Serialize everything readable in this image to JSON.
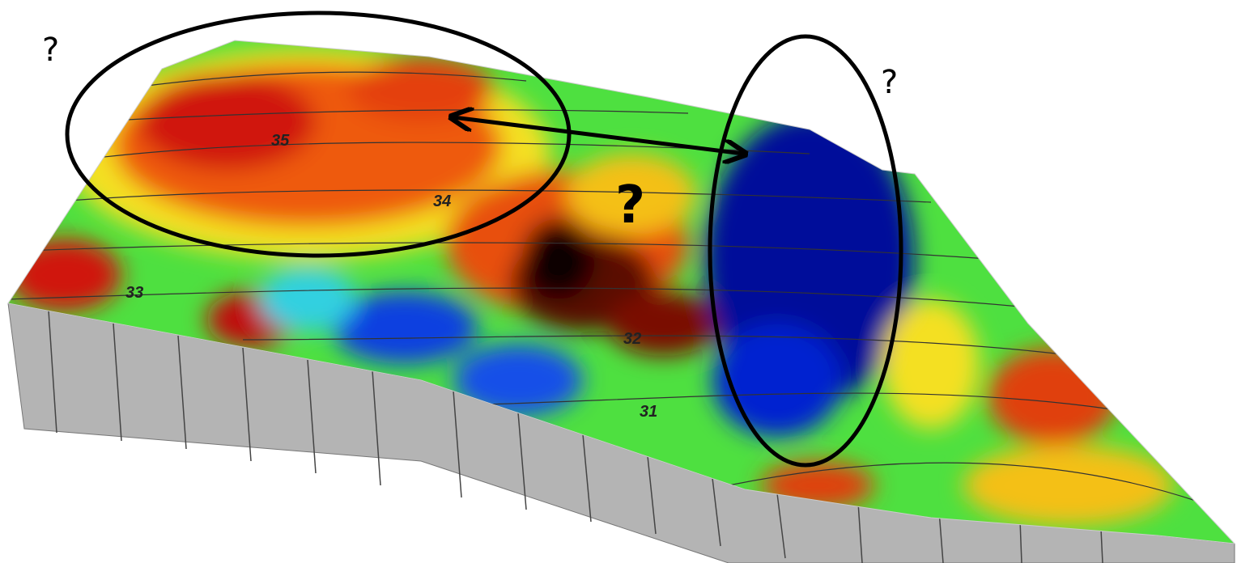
{
  "annotations": {
    "question_top_left": "?",
    "question_top_right": "?",
    "question_center": "?"
  },
  "contour_labels": [
    "35",
    "34",
    "33",
    "32",
    "31"
  ]
}
